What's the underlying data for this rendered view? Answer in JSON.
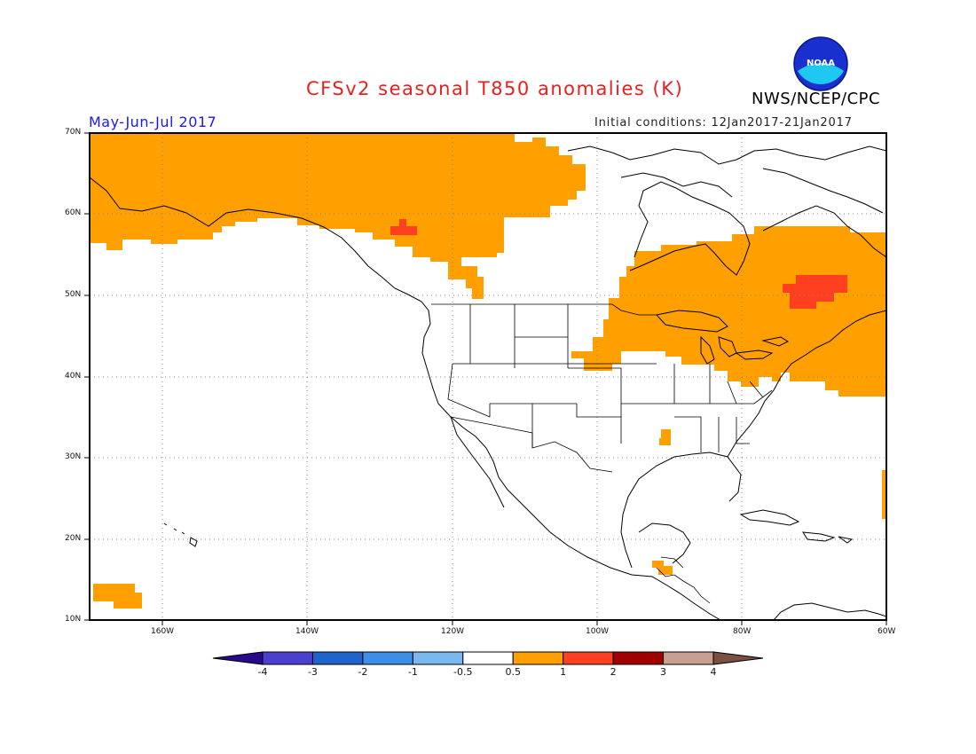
{
  "header": {
    "title": "CFSv2 seasonal T850 anomalies (K)",
    "agency": "NWS/NCEP/CPC",
    "period": "May-Jun-Jul 2017",
    "initial_conditions": "Initial conditions: 12Jan2017-21Jan2017",
    "logo_text": "NOAA"
  },
  "map": {
    "projection": "lat-lon",
    "lon_range": [
      -172,
      -60
    ],
    "lat_range": [
      10,
      70
    ],
    "lat_labels": [
      "70N",
      "60N",
      "50N",
      "40N",
      "30N",
      "20N",
      "10N"
    ],
    "lon_labels": [
      "160W",
      "140W",
      "120W",
      "100W",
      "80W",
      "60W"
    ]
  },
  "colorbar": {
    "tick_labels": [
      "-4",
      "-3",
      "-2",
      "-1",
      "-0.5",
      "0.5",
      "1",
      "2",
      "3",
      "4"
    ],
    "colors": [
      "#2a0a8c",
      "#4a3fcf",
      "#1e64cc",
      "#3d8ee8",
      "#7ab8f0",
      "#ffffff",
      "#ff9f00",
      "#ff4020",
      "#a00000",
      "#c8a090",
      "#7a5040"
    ]
  },
  "anomaly_colors": {
    "0.5_to_1": "#ff9f00",
    "1_to_2": "#ff4020"
  }
}
